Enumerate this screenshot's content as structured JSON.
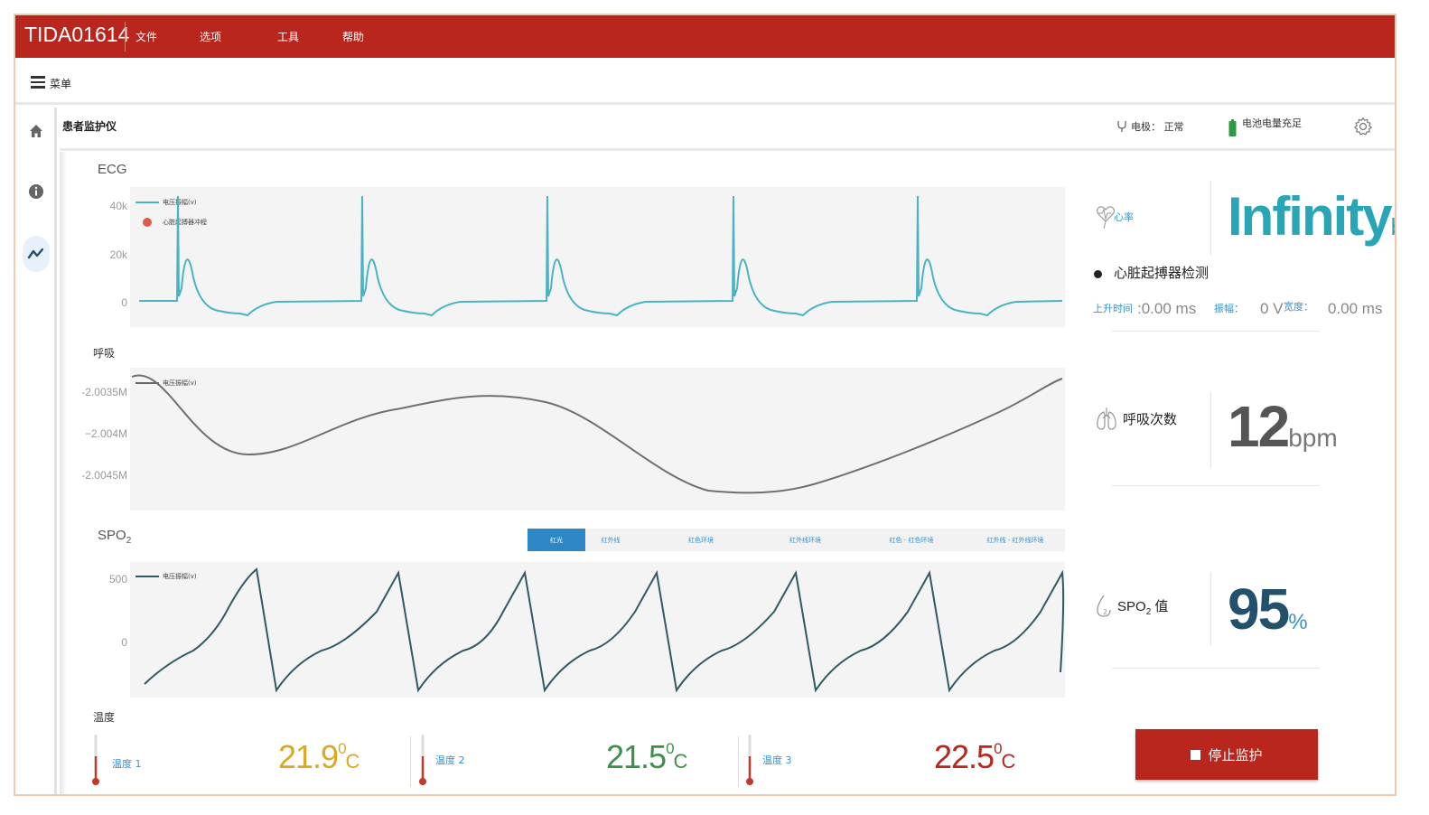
{
  "app": {
    "brand": "TIDA01614",
    "menu": [
      "文件",
      "选项",
      "工具",
      "帮助"
    ],
    "menu_button_label": "菜单"
  },
  "header": {
    "title": "患者监护仪",
    "electrode_status": "电极： 正常",
    "battery_status": "电池电量充足"
  },
  "ecg": {
    "label": "ECG",
    "yticks": [
      "40k",
      "20k",
      "0"
    ],
    "legend_voltage": "电压振幅(v)",
    "legend_pacer": "心脏起搏器冲程"
  },
  "resp": {
    "label": "呼吸",
    "yticks": [
      "-2.0035M",
      "−2.004M",
      "-2.0045M"
    ],
    "legend_voltage": "电压振幅(v)"
  },
  "spo2": {
    "label_main": "SPO",
    "label_sub": "2",
    "yticks": [
      "500",
      "0"
    ],
    "legend_voltage": "电压振幅(v)",
    "tabs": [
      "红光",
      "红外线",
      "红色环境",
      "红外线环境",
      "红色 - 红色环境",
      "红外线 - 红外线环境"
    ],
    "active_tab": 0
  },
  "metrics": {
    "heart_rate_label": "心率",
    "heart_rate_value": "Infinity",
    "heart_rate_unit": "bpm",
    "pacer_title": "心脏起搏器检测",
    "rise_time_label": "上升时间",
    "rise_time_value": ":0.00 ms",
    "amplitude_label": "振幅：",
    "amplitude_value": "0 V",
    "width_label": "宽度：",
    "width_value": "0.00 ms",
    "resp_rate_label": "呼吸次数",
    "resp_rate_value": "12",
    "resp_rate_unit": "bpm",
    "spo2_label_main": "SPO",
    "spo2_label_sub": "2",
    "spo2_label_suffix": " 值",
    "spo2_value": "95",
    "spo2_unit": "%"
  },
  "temperature": {
    "label": "温度",
    "sensors": [
      {
        "label": "温度 1",
        "value": "21.9",
        "deg": "0",
        "unit": "C",
        "color": "#d9a826"
      },
      {
        "label": "温度 2",
        "value": "21.5",
        "deg": "0",
        "unit": "C",
        "color": "#3e8f4a"
      },
      {
        "label": "温度 3",
        "value": "22.5",
        "deg": "0",
        "unit": "C",
        "color": "#b8261e"
      }
    ]
  },
  "actions": {
    "stop_label": "停止监护"
  },
  "colors": {
    "brand_red": "#b8261e",
    "ecg_line": "#4bb3c3",
    "resp_line": "#707070",
    "spo2_line": "#2f5a63",
    "accent_teal": "#2aa5b5",
    "link_blue": "#3a8fc8"
  }
}
